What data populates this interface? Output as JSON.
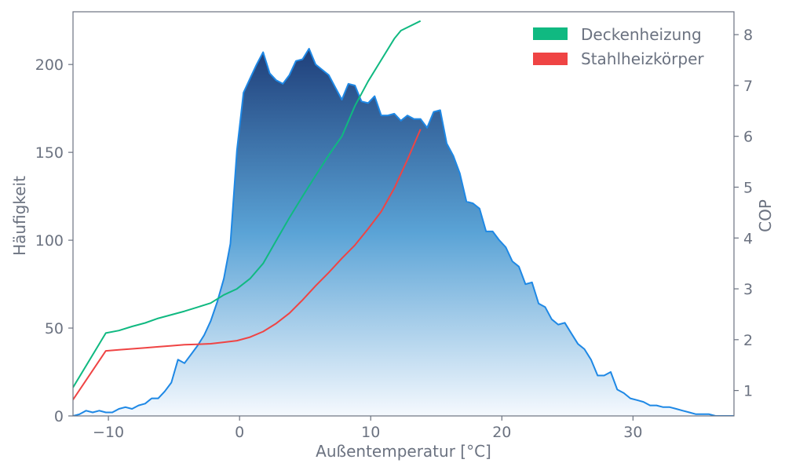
{
  "chart_data": {
    "type": "area",
    "xlabel": "Außentemperatur [°C]",
    "ylabel": "Häufigkeit",
    "y2label": "COP",
    "xlim": [
      -12.7,
      37.7
    ],
    "ylim": [
      0,
      230
    ],
    "y2lim": [
      0.5,
      8.45
    ],
    "xticks": [
      -10,
      0,
      10,
      20,
      30
    ],
    "xtick_labels": [
      "−10",
      "0",
      "10",
      "20",
      "30"
    ],
    "yticks": [
      0,
      50,
      100,
      150,
      200
    ],
    "ytick_labels": [
      "0",
      "50",
      "100",
      "150",
      "200"
    ],
    "y2ticks": [
      1,
      2,
      3,
      4,
      5,
      6,
      7,
      8
    ],
    "y2tick_labels": [
      "1",
      "2",
      "3",
      "4",
      "5",
      "6",
      "7",
      "8"
    ],
    "grid": false,
    "legend_position": "top-right",
    "histogram": {
      "color": "#1e88e5",
      "fill_top": "#1f3f7a",
      "fill_bottom": "#f5f9fe",
      "x": [
        -12.7,
        -12.2,
        -11.7,
        -11.2,
        -10.7,
        -10.2,
        -9.7,
        -9.2,
        -8.7,
        -8.2,
        -7.7,
        -7.2,
        -6.7,
        -6.2,
        -5.7,
        -5.2,
        -4.7,
        -4.2,
        -3.7,
        -3.2,
        -2.7,
        -2.2,
        -1.7,
        -1.2,
        -0.7,
        -0.2,
        0.3,
        0.8,
        1.3,
        1.8,
        2.3,
        2.8,
        3.3,
        3.8,
        4.3,
        4.8,
        5.3,
        5.8,
        6.3,
        6.8,
        7.3,
        7.8,
        8.3,
        8.8,
        9.3,
        9.8,
        10.3,
        10.8,
        11.3,
        11.8,
        12.3,
        12.8,
        13.3,
        13.8,
        14.3,
        14.8,
        15.3,
        15.8,
        16.3,
        16.8,
        17.3,
        17.8,
        18.3,
        18.8,
        19.3,
        19.8,
        20.3,
        20.8,
        21.3,
        21.8,
        22.3,
        22.8,
        23.3,
        23.8,
        24.3,
        24.8,
        25.3,
        25.8,
        26.3,
        26.8,
        27.3,
        27.8,
        28.3,
        28.8,
        29.3,
        29.8,
        30.3,
        30.8,
        31.3,
        31.8,
        32.3,
        32.8,
        33.3,
        33.8,
        34.3,
        34.8,
        35.3,
        35.8,
        36.3,
        36.8,
        37.3,
        37.7
      ],
      "values": [
        0,
        1,
        3,
        2,
        3,
        2,
        2,
        4,
        5,
        4,
        6,
        7,
        10,
        10,
        14,
        19,
        32,
        30,
        35,
        40,
        46,
        54,
        65,
        78,
        98,
        151,
        184,
        192,
        200,
        207,
        195,
        191,
        189,
        194,
        202,
        203,
        209,
        200,
        197,
        194,
        187,
        180,
        189,
        188,
        179,
        178,
        182,
        171,
        171,
        172,
        168,
        171,
        169,
        169,
        164,
        173,
        174,
        155,
        148,
        138,
        122,
        121,
        118,
        105,
        105,
        100,
        96,
        88,
        85,
        75,
        76,
        64,
        62,
        55,
        52,
        53,
        47,
        41,
        38,
        32,
        23,
        23,
        25,
        15,
        13,
        10,
        9,
        8,
        6,
        6,
        5,
        5,
        4,
        3,
        2,
        1,
        1,
        1,
        0,
        0,
        0,
        0
      ]
    },
    "series": [
      {
        "name": "Deckenheizung",
        "color": "#10b981",
        "x": [
          -12.7,
          -10.2,
          -9.2,
          -8.2,
          -7.2,
          -6.2,
          -5.2,
          -4.2,
          -3.2,
          -2.2,
          -1.2,
          -0.2,
          0.8,
          1.8,
          2.8,
          3.8,
          4.8,
          5.8,
          6.8,
          7.8,
          8.8,
          9.8,
          10.8,
          11.8,
          12.3,
          13.8
        ],
        "values": [
          1.06,
          2.13,
          2.18,
          2.26,
          2.33,
          2.42,
          2.49,
          2.56,
          2.64,
          2.72,
          2.88,
          3.0,
          3.2,
          3.5,
          3.95,
          4.4,
          4.82,
          5.23,
          5.63,
          6.0,
          6.6,
          7.08,
          7.5,
          7.92,
          8.08,
          8.27
        ]
      },
      {
        "name": "Stahlheizkörper",
        "color": "#ef4444",
        "x": [
          -12.7,
          -10.2,
          -9.2,
          -8.2,
          -7.2,
          -6.2,
          -5.2,
          -4.2,
          -3.2,
          -2.2,
          -1.2,
          -0.2,
          0.8,
          1.8,
          2.8,
          3.8,
          4.8,
          5.8,
          6.8,
          7.8,
          8.8,
          9.8,
          10.8,
          11.8,
          12.8,
          13.8
        ],
        "values": [
          0.82,
          1.78,
          1.8,
          1.82,
          1.84,
          1.86,
          1.88,
          1.9,
          1.91,
          1.92,
          1.95,
          1.98,
          2.05,
          2.16,
          2.32,
          2.52,
          2.78,
          3.06,
          3.32,
          3.6,
          3.86,
          4.18,
          4.52,
          4.98,
          5.54,
          6.14
        ]
      }
    ]
  }
}
